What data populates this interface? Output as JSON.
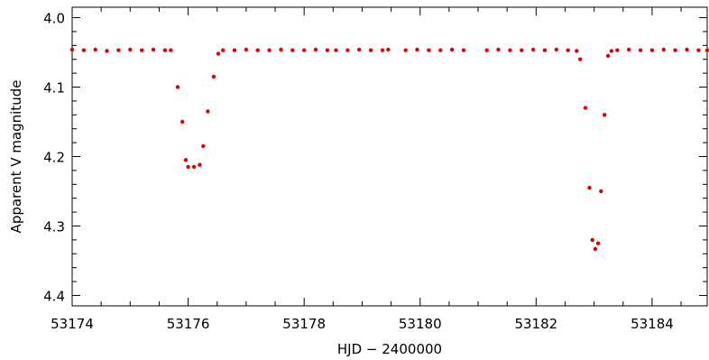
{
  "chart_data": {
    "type": "scatter",
    "title": "",
    "xlabel": "HJD − 2400000",
    "ylabel": "Apparent V magnitude",
    "xlim": [
      53174.0,
      53184.95
    ],
    "ylim": [
      4.415,
      3.985
    ],
    "y_inverted": true,
    "x_ticks": [
      53174,
      53176,
      53178,
      53180,
      53182,
      53184
    ],
    "x_tick_labels": [
      "53174",
      "53176",
      "53178",
      "53180",
      "53182",
      "53184"
    ],
    "y_ticks": [
      4.0,
      4.1,
      4.2,
      4.3,
      4.4
    ],
    "y_tick_labels": [
      "4.0",
      "4.1",
      "4.2",
      "4.3",
      "4.4"
    ],
    "grid": false,
    "legend": "none",
    "marker_color": "#dd0000",
    "series": [
      {
        "x": [
          53174.0,
          53174.2,
          53174.4,
          53174.6,
          53174.8,
          53175.0,
          53175.2,
          53175.4,
          53175.6,
          53175.7,
          53175.82,
          53175.9,
          53175.96,
          53176.0,
          53176.1,
          53176.2,
          53176.26,
          53176.34,
          53176.44,
          53176.52,
          53176.6,
          53176.8,
          53177.0,
          53177.2,
          53177.4,
          53177.6,
          53177.8,
          53178.0,
          53178.2,
          53178.4,
          53178.55,
          53178.75,
          53178.95,
          53179.15,
          53179.35,
          53179.45,
          53179.75,
          53179.95,
          53180.15,
          53180.35,
          53180.55,
          53180.75,
          53181.15,
          53181.35,
          53181.55,
          53181.75,
          53181.95,
          53182.15,
          53182.35,
          53182.55,
          53182.7,
          53182.76,
          53182.85,
          53182.92,
          53182.97,
          53183.02,
          53183.07,
          53183.12,
          53183.18,
          53183.24,
          53183.3,
          53183.4,
          53183.6,
          53183.8,
          53184.0,
          53184.2,
          53184.4,
          53184.6,
          53184.8,
          53184.95
        ],
        "y": [
          4.046,
          4.047,
          4.046,
          4.048,
          4.047,
          4.046,
          4.047,
          4.046,
          4.047,
          4.047,
          4.1,
          4.15,
          4.205,
          4.215,
          4.215,
          4.212,
          4.185,
          4.135,
          4.085,
          4.052,
          4.047,
          4.047,
          4.046,
          4.047,
          4.047,
          4.046,
          4.047,
          4.047,
          4.046,
          4.047,
          4.047,
          4.047,
          4.046,
          4.047,
          4.047,
          4.046,
          4.047,
          4.046,
          4.047,
          4.047,
          4.046,
          4.047,
          4.047,
          4.046,
          4.047,
          4.047,
          4.046,
          4.047,
          4.046,
          4.047,
          4.048,
          4.06,
          4.13,
          4.245,
          4.32,
          4.333,
          4.325,
          4.25,
          4.14,
          4.055,
          4.048,
          4.047,
          4.046,
          4.047,
          4.047,
          4.046,
          4.047,
          4.046,
          4.047,
          4.047
        ]
      }
    ]
  }
}
